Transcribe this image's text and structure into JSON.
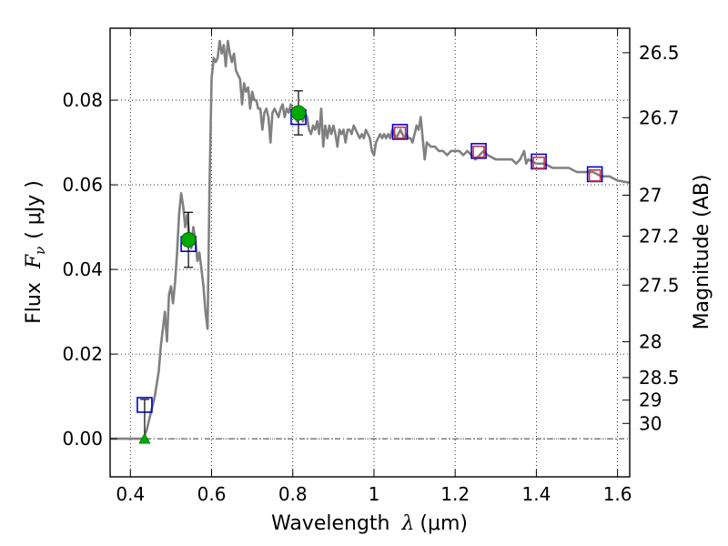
{
  "chart_data": {
    "type": "line",
    "xlabel_text": "Wavelength ",
    "xlabel_math": "λ",
    "xlabel_unit": "(μm)",
    "ylabel_text": "Flux ",
    "ylabel_math": "F",
    "ylabel_sub": "ν",
    "ylabel_unit": "( μJy )",
    "y2label": "Magnitude (AB)",
    "xlim": [
      0.35,
      1.63
    ],
    "ylim": [
      -0.009,
      0.097
    ],
    "x_ticks": [
      {
        "value": 0.4,
        "label": "0.4"
      },
      {
        "value": 0.6,
        "label": "0.6"
      },
      {
        "value": 0.8,
        "label": "0.8"
      },
      {
        "value": 1.0,
        "label": "1"
      },
      {
        "value": 1.2,
        "label": "1.2"
      },
      {
        "value": 1.4,
        "label": "1.4"
      },
      {
        "value": 1.6,
        "label": "1.6"
      }
    ],
    "y_ticks": [
      {
        "value": 0.0,
        "label": "0.00"
      },
      {
        "value": 0.02,
        "label": "0.02"
      },
      {
        "value": 0.04,
        "label": "0.04"
      },
      {
        "value": 0.06,
        "label": "0.06"
      },
      {
        "value": 0.08,
        "label": "0.08"
      }
    ],
    "mag_ticks": [
      {
        "value": 26.5,
        "label": "26.5"
      },
      {
        "value": 26.7,
        "label": "26.7"
      },
      {
        "value": 27.0,
        "label": "27"
      },
      {
        "value": 27.2,
        "label": "27.2"
      },
      {
        "value": 27.5,
        "label": "27.5"
      },
      {
        "value": 28.0,
        "label": "28"
      },
      {
        "value": 28.5,
        "label": "28.5"
      },
      {
        "value": 29.0,
        "label": "29"
      },
      {
        "value": 30.0,
        "label": "30"
      }
    ],
    "grid": true,
    "series": [
      {
        "role": "model_sed",
        "color": "#808080",
        "points": [
          [
            0.35,
            0.0
          ],
          [
            0.432,
            0.0
          ],
          [
            0.44,
            0.002
          ],
          [
            0.45,
            0.006
          ],
          [
            0.46,
            0.01
          ],
          [
            0.47,
            0.016
          ],
          [
            0.475,
            0.022
          ],
          [
            0.48,
            0.026
          ],
          [
            0.485,
            0.03
          ],
          [
            0.49,
            0.023
          ],
          [
            0.495,
            0.034
          ],
          [
            0.5,
            0.036
          ],
          [
            0.505,
            0.032
          ],
          [
            0.51,
            0.037
          ],
          [
            0.515,
            0.044
          ],
          [
            0.52,
            0.053
          ],
          [
            0.525,
            0.058
          ],
          [
            0.53,
            0.055
          ],
          [
            0.535,
            0.05
          ],
          [
            0.54,
            0.053
          ],
          [
            0.545,
            0.048
          ],
          [
            0.55,
            0.045
          ],
          [
            0.555,
            0.05
          ],
          [
            0.56,
            0.047
          ],
          [
            0.565,
            0.042
          ],
          [
            0.57,
            0.044
          ],
          [
            0.575,
            0.04
          ],
          [
            0.58,
            0.036
          ],
          [
            0.585,
            0.03
          ],
          [
            0.59,
            0.026
          ],
          [
            0.595,
            0.06
          ],
          [
            0.6,
            0.085
          ],
          [
            0.605,
            0.09
          ],
          [
            0.61,
            0.089
          ],
          [
            0.615,
            0.09
          ],
          [
            0.62,
            0.094
          ],
          [
            0.625,
            0.091
          ],
          [
            0.63,
            0.093
          ],
          [
            0.635,
            0.088
          ],
          [
            0.64,
            0.094
          ],
          [
            0.645,
            0.091
          ],
          [
            0.65,
            0.089
          ],
          [
            0.655,
            0.091
          ],
          [
            0.66,
            0.087
          ],
          [
            0.665,
            0.086
          ],
          [
            0.67,
            0.085
          ],
          [
            0.675,
            0.079
          ],
          [
            0.68,
            0.084
          ],
          [
            0.685,
            0.082
          ],
          [
            0.69,
            0.083
          ],
          [
            0.695,
            0.078
          ],
          [
            0.7,
            0.082
          ],
          [
            0.705,
            0.08
          ],
          [
            0.71,
            0.08
          ],
          [
            0.715,
            0.078
          ],
          [
            0.72,
            0.078
          ],
          [
            0.725,
            0.073
          ],
          [
            0.73,
            0.077
          ],
          [
            0.735,
            0.078
          ],
          [
            0.74,
            0.076
          ],
          [
            0.745,
            0.07
          ],
          [
            0.75,
            0.077
          ],
          [
            0.755,
            0.078
          ],
          [
            0.76,
            0.077
          ],
          [
            0.765,
            0.076
          ],
          [
            0.77,
            0.078
          ],
          [
            0.775,
            0.079
          ],
          [
            0.78,
            0.076
          ],
          [
            0.785,
            0.078
          ],
          [
            0.79,
            0.077
          ],
          [
            0.795,
            0.079
          ],
          [
            0.8,
            0.078
          ],
          [
            0.805,
            0.077
          ],
          [
            0.81,
            0.075
          ],
          [
            0.815,
            0.076
          ],
          [
            0.82,
            0.077
          ],
          [
            0.825,
            0.075
          ],
          [
            0.83,
            0.077
          ],
          [
            0.835,
            0.076
          ],
          [
            0.84,
            0.073
          ],
          [
            0.845,
            0.072
          ],
          [
            0.85,
            0.074
          ],
          [
            0.855,
            0.073
          ],
          [
            0.86,
            0.075
          ],
          [
            0.865,
            0.072
          ],
          [
            0.87,
            0.078
          ],
          [
            0.875,
            0.069
          ],
          [
            0.88,
            0.074
          ],
          [
            0.885,
            0.071
          ],
          [
            0.89,
            0.074
          ],
          [
            0.895,
            0.072
          ],
          [
            0.9,
            0.074
          ],
          [
            0.905,
            0.072
          ],
          [
            0.91,
            0.069
          ],
          [
            0.915,
            0.073
          ],
          [
            0.92,
            0.072
          ],
          [
            0.925,
            0.073
          ],
          [
            0.93,
            0.07
          ],
          [
            0.935,
            0.073
          ],
          [
            0.94,
            0.073
          ],
          [
            0.945,
            0.072
          ],
          [
            0.95,
            0.074
          ],
          [
            0.955,
            0.073
          ],
          [
            0.96,
            0.072
          ],
          [
            0.965,
            0.071
          ],
          [
            0.97,
            0.072
          ],
          [
            0.975,
            0.071
          ],
          [
            0.98,
            0.073
          ],
          [
            0.985,
            0.072
          ],
          [
            0.99,
            0.071
          ],
          [
            0.995,
            0.068
          ],
          [
            1.0,
            0.067
          ],
          [
            1.005,
            0.07
          ],
          [
            1.01,
            0.071
          ],
          [
            1.015,
            0.072
          ],
          [
            1.02,
            0.071
          ],
          [
            1.025,
            0.072
          ],
          [
            1.03,
            0.071
          ],
          [
            1.035,
            0.072
          ],
          [
            1.04,
            0.071
          ],
          [
            1.045,
            0.073
          ],
          [
            1.05,
            0.072
          ],
          [
            1.055,
            0.071
          ],
          [
            1.06,
            0.072
          ],
          [
            1.065,
            0.073
          ],
          [
            1.07,
            0.072
          ],
          [
            1.075,
            0.071
          ],
          [
            1.08,
            0.072
          ],
          [
            1.085,
            0.071
          ],
          [
            1.09,
            0.071
          ],
          [
            1.095,
            0.07
          ],
          [
            1.1,
            0.072
          ],
          [
            1.105,
            0.074
          ],
          [
            1.11,
            0.073
          ],
          [
            1.115,
            0.076
          ],
          [
            1.12,
            0.071
          ],
          [
            1.125,
            0.066
          ],
          [
            1.13,
            0.07
          ],
          [
            1.14,
            0.069
          ],
          [
            1.15,
            0.069
          ],
          [
            1.16,
            0.068
          ],
          [
            1.17,
            0.068
          ],
          [
            1.18,
            0.067
          ],
          [
            1.19,
            0.068
          ],
          [
            1.2,
            0.068
          ],
          [
            1.21,
            0.068
          ],
          [
            1.22,
            0.067
          ],
          [
            1.23,
            0.068
          ],
          [
            1.24,
            0.067
          ],
          [
            1.25,
            0.066
          ],
          [
            1.26,
            0.067
          ],
          [
            1.27,
            0.068
          ],
          [
            1.28,
            0.067
          ],
          [
            1.3,
            0.066
          ],
          [
            1.32,
            0.066
          ],
          [
            1.34,
            0.066
          ],
          [
            1.35,
            0.065
          ],
          [
            1.36,
            0.066
          ],
          [
            1.37,
            0.068
          ],
          [
            1.375,
            0.065
          ],
          [
            1.38,
            0.066
          ],
          [
            1.4,
            0.065
          ],
          [
            1.42,
            0.065
          ],
          [
            1.44,
            0.064
          ],
          [
            1.46,
            0.064
          ],
          [
            1.48,
            0.064
          ],
          [
            1.5,
            0.063
          ],
          [
            1.52,
            0.063
          ],
          [
            1.54,
            0.063
          ],
          [
            1.56,
            0.062
          ],
          [
            1.58,
            0.062
          ],
          [
            1.6,
            0.061
          ],
          [
            1.63,
            0.0605
          ]
        ]
      },
      {
        "role": "model_band_flux",
        "color": "#0000cc",
        "marker": "open-square",
        "points": [
          [
            0.435,
            0.008
          ],
          [
            0.543,
            0.046
          ],
          [
            0.814,
            0.076
          ],
          [
            1.064,
            0.0725
          ],
          [
            1.258,
            0.068
          ],
          [
            1.406,
            0.0655
          ],
          [
            1.544,
            0.0625
          ]
        ]
      },
      {
        "role": "observed_red",
        "color": "#cc3344",
        "marker": "open-square",
        "points": [
          [
            1.064,
            0.0723
          ],
          [
            1.258,
            0.0678
          ],
          [
            1.406,
            0.0652
          ],
          [
            1.544,
            0.0622
          ]
        ]
      },
      {
        "role": "observed_detection",
        "color": "#00aa00",
        "marker": "filled-circle",
        "points": [
          {
            "x": 0.543,
            "y": 0.047,
            "yerr": [
              0.0405,
              0.0535
            ]
          },
          {
            "x": 0.814,
            "y": 0.077,
            "yerr": [
              0.0718,
              0.0822
            ]
          }
        ]
      },
      {
        "role": "observed_limit",
        "color": "#00aa00",
        "marker": "triangle-up",
        "points": [
          {
            "x": 0.435,
            "y": 0.0,
            "yerr": [
              0.0,
              0.0093
            ]
          }
        ]
      }
    ],
    "zero_line": {
      "y": 0.0,
      "style": "dash-dot"
    }
  }
}
